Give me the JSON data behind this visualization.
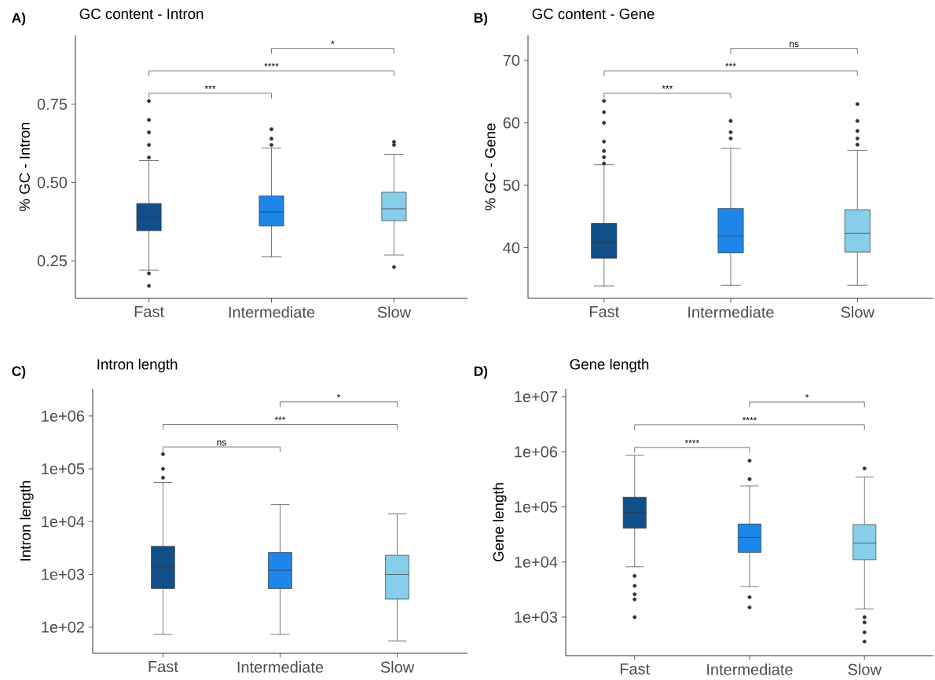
{
  "chart_data": [
    {
      "type": "box",
      "title": "GC content - Intron",
      "ylabel": "% GC - Intron",
      "categories": [
        "Fast",
        "Intermediate",
        "Slow"
      ],
      "colors": [
        "#114f8a",
        "#1e85eb",
        "#87ceeb"
      ],
      "boxes": [
        {
          "low": 0.22,
          "q1": 0.346,
          "median": 0.387,
          "q3": 0.433,
          "high": 0.57,
          "outliers": [
            0.58,
            0.62,
            0.66,
            0.7,
            0.76,
            0.21,
            0.17
          ]
        },
        {
          "low": 0.263,
          "q1": 0.361,
          "median": 0.406,
          "q3": 0.457,
          "high": 0.61,
          "outliers": [
            0.62,
            0.64,
            0.67
          ]
        },
        {
          "low": 0.268,
          "q1": 0.378,
          "median": 0.416,
          "q3": 0.469,
          "high": 0.59,
          "outliers": [
            0.62,
            0.63,
            0.23
          ]
        }
      ],
      "ylim": [
        0.13,
        0.97
      ],
      "yticks": [
        0.25,
        {
          "value": 0.5,
          "label": "0.50"
        },
        0.75
      ],
      "annotations": [
        "A)",
        "***",
        "****",
        "*"
      ]
    },
    {
      "type": "box",
      "title": "GC content - Gene",
      "ylabel": "% GC - Gene",
      "categories": [
        "Fast",
        "Intermediate",
        "Slow"
      ],
      "colors": [
        "#114f8a",
        "#1e85eb",
        "#87ceeb"
      ],
      "boxes": [
        {
          "low": 33.9,
          "q1": 38.3,
          "median": 40.9,
          "q3": 43.9,
          "high": 53.3,
          "outliers": [
            53.5,
            54.5,
            55.5,
            57,
            60,
            61.7,
            63.5
          ]
        },
        {
          "low": 34,
          "q1": 39.2,
          "median": 41.9,
          "q3": 46.3,
          "high": 55.9,
          "outliers": [
            57.5,
            58.5,
            60.3
          ]
        },
        {
          "low": 34,
          "q1": 39.3,
          "median": 42.3,
          "q3": 46.1,
          "high": 55.6,
          "outliers": [
            56.5,
            57.5,
            58.7,
            60.3,
            63
          ]
        }
      ],
      "ylim": [
        31.9,
        74
      ],
      "yticks": [
        40,
        50,
        60,
        70
      ],
      "annotations": [
        "B)",
        "***",
        "***",
        "ns"
      ]
    },
    {
      "type": "box",
      "title": "Intron length",
      "ylabel": "Intron length",
      "categories": [
        "Fast",
        "Intermediate",
        "Slow"
      ],
      "colors": [
        "#114f8a",
        "#1e85eb",
        "#87ceeb"
      ],
      "log": true,
      "boxes": [
        {
          "low": 73,
          "q1": 540,
          "median": 1400,
          "q3": 3400,
          "high": 55000,
          "outliers": [
            68000,
            100000,
            190000
          ]
        },
        {
          "low": 73,
          "q1": 540,
          "median": 1200,
          "q3": 2600,
          "high": 21000
        },
        {
          "low": 55,
          "q1": 340,
          "median": 1000,
          "q3": 2300,
          "high": 14000
        }
      ],
      "ylim": [
        32,
        3300000
      ],
      "yticks": [
        {
          "value": 100,
          "label": "1e+02"
        },
        {
          "value": 1000,
          "label": "1e+03"
        },
        {
          "value": 10000,
          "label": "1e+04"
        },
        {
          "value": 100000,
          "label": "1e+05"
        },
        {
          "value": 1000000,
          "label": "1e+06"
        }
      ],
      "annotations": [
        "C)",
        "ns",
        "***",
        "*"
      ]
    },
    {
      "type": "box",
      "title": "Gene length",
      "ylabel": "Gene length",
      "categories": [
        "Fast",
        "Intermediate",
        "Slow"
      ],
      "colors": [
        "#114f8a",
        "#1e85eb",
        "#87ceeb"
      ],
      "log": true,
      "boxes": [
        {
          "low": 8200,
          "q1": 41000,
          "median": 79000,
          "q3": 150000,
          "high": 860000,
          "outliers": [
            5600,
            3700,
            2600,
            2100,
            1000
          ]
        },
        {
          "low": 3600,
          "q1": 15000,
          "median": 28000,
          "q3": 49000,
          "high": 240000,
          "outliers": [
            320000,
            690000,
            2300,
            1500
          ]
        },
        {
          "low": 1400,
          "q1": 11000,
          "median": 22000,
          "q3": 48000,
          "high": 350000,
          "outliers": [
            500000,
            1000,
            800,
            530,
            360
          ]
        }
      ],
      "ylim": [
        200,
        14000000
      ],
      "yticks": [
        {
          "value": 1000,
          "label": "1e+03"
        },
        {
          "value": 10000,
          "label": "1e+04"
        },
        {
          "value": 100000,
          "label": "1e+05"
        },
        {
          "value": 1000000,
          "label": "1e+06"
        },
        {
          "value": 10000000,
          "label": "1e+07"
        }
      ],
      "annotations": [
        "D)",
        "****",
        "****",
        "*"
      ]
    }
  ]
}
